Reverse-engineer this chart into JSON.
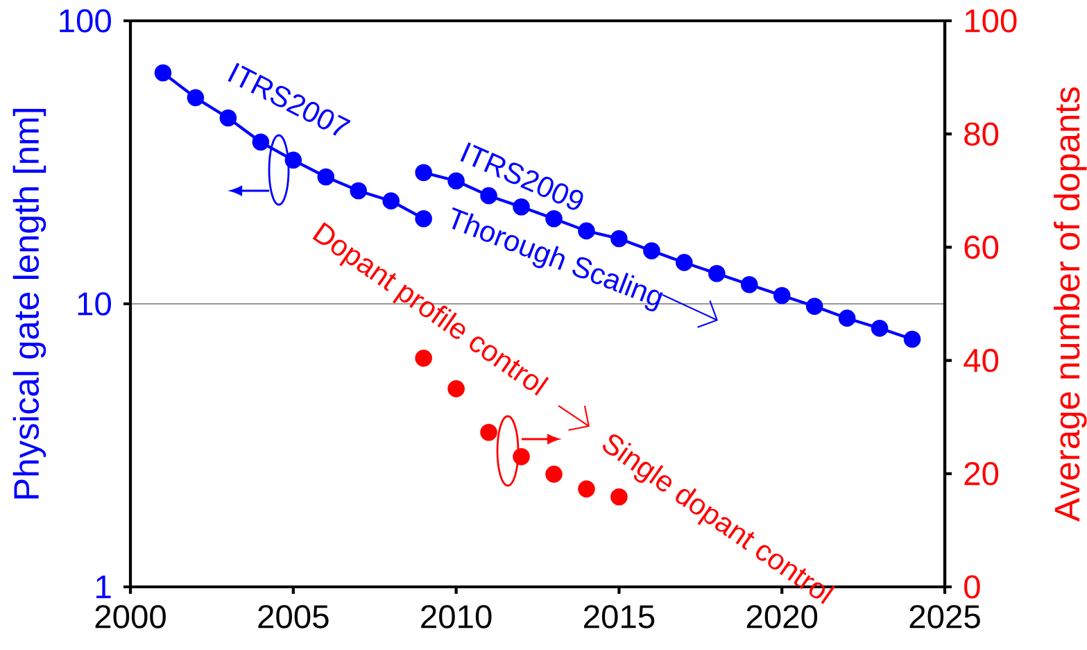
{
  "chart_data": {
    "type": "line",
    "xlim": [
      2000,
      2025
    ],
    "xticks": [
      2000,
      2005,
      2010,
      2015,
      2020,
      2025
    ],
    "ylim": [
      1,
      100
    ],
    "yticks": [
      1,
      10,
      100
    ],
    "log": "y",
    "y2lim": [
      0,
      100
    ],
    "y2ticks": [
      0,
      20,
      40,
      60,
      80,
      100
    ],
    "ylabel": "Physical gate length [nm]",
    "y2label": "Average number of dopants",
    "grid": "y",
    "marker": "circle",
    "series": [
      {
        "color": "#0000ff",
        "x": [
          2001,
          2002,
          2003,
          2004,
          2005,
          2006,
          2007,
          2008,
          2009
        ],
        "values": [
          65.5,
          53.5,
          45.4,
          37.3,
          32.2,
          28.1,
          25.1,
          23.1,
          20.0
        ]
      },
      {
        "color": "#0000ff",
        "x": [
          2009,
          2010,
          2011,
          2012,
          2013,
          2014,
          2015,
          2016,
          2017,
          2018,
          2019,
          2020,
          2021,
          2022,
          2023,
          2024
        ],
        "values": [
          29.1,
          27.2,
          24.1,
          22.0,
          20.0,
          18.1,
          17.0,
          15.4,
          14.0,
          12.8,
          11.7,
          10.7,
          9.8,
          8.9,
          8.2,
          7.5
        ]
      },
      {
        "type": "scatter",
        "axis": "y2",
        "color": "#ff0000",
        "x": [
          2009,
          2010,
          2011,
          2012,
          2013,
          2014,
          2015
        ],
        "values": [
          40.4,
          35.0,
          27.3,
          23.0,
          19.9,
          17.3,
          15.9
        ]
      }
    ],
    "annotations": [
      "ITRS2007",
      "ITRS2009",
      "Thorough Scaling",
      "Dopant profile control",
      "Single dopant control"
    ]
  }
}
